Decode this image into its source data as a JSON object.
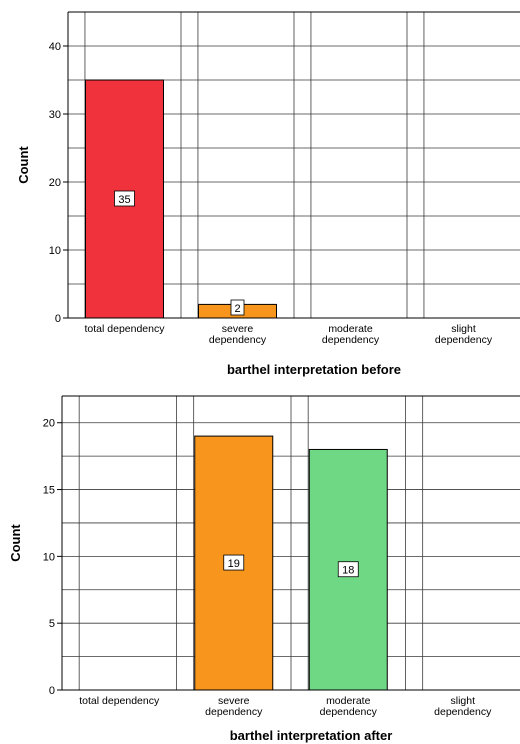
{
  "chart_data": [
    {
      "type": "bar",
      "categories": [
        "total dependency",
        "severe\ndependency",
        "moderate\ndependency",
        "slight\ndependency"
      ],
      "values": [
        35,
        2,
        0,
        0
      ],
      "data_labels": [
        "35",
        "2",
        "",
        ""
      ],
      "colors": [
        "#f0323c",
        "#f7951d",
        "#6fd884",
        "#b9b9f4"
      ],
      "xlabel": "barthel interpretation before",
      "ylabel": "Count",
      "ylim": [
        0,
        45
      ],
      "yticks": [
        0,
        10,
        20,
        30,
        40
      ],
      "grid": true
    },
    {
      "type": "bar",
      "categories": [
        "total dependency",
        "severe\ndependency",
        "moderate\ndependency",
        "slight\ndependency"
      ],
      "values": [
        0,
        19,
        18,
        0
      ],
      "data_labels": [
        "",
        "19",
        "18",
        ""
      ],
      "colors": [
        "#f0323c",
        "#f7951d",
        "#6fd884",
        "#b9b9f4"
      ],
      "xlabel": "barthel interpretation after",
      "ylabel": "Count",
      "ylim": [
        0,
        22
      ],
      "yticks": [
        0,
        5,
        10,
        15,
        20
      ],
      "grid": true
    }
  ]
}
